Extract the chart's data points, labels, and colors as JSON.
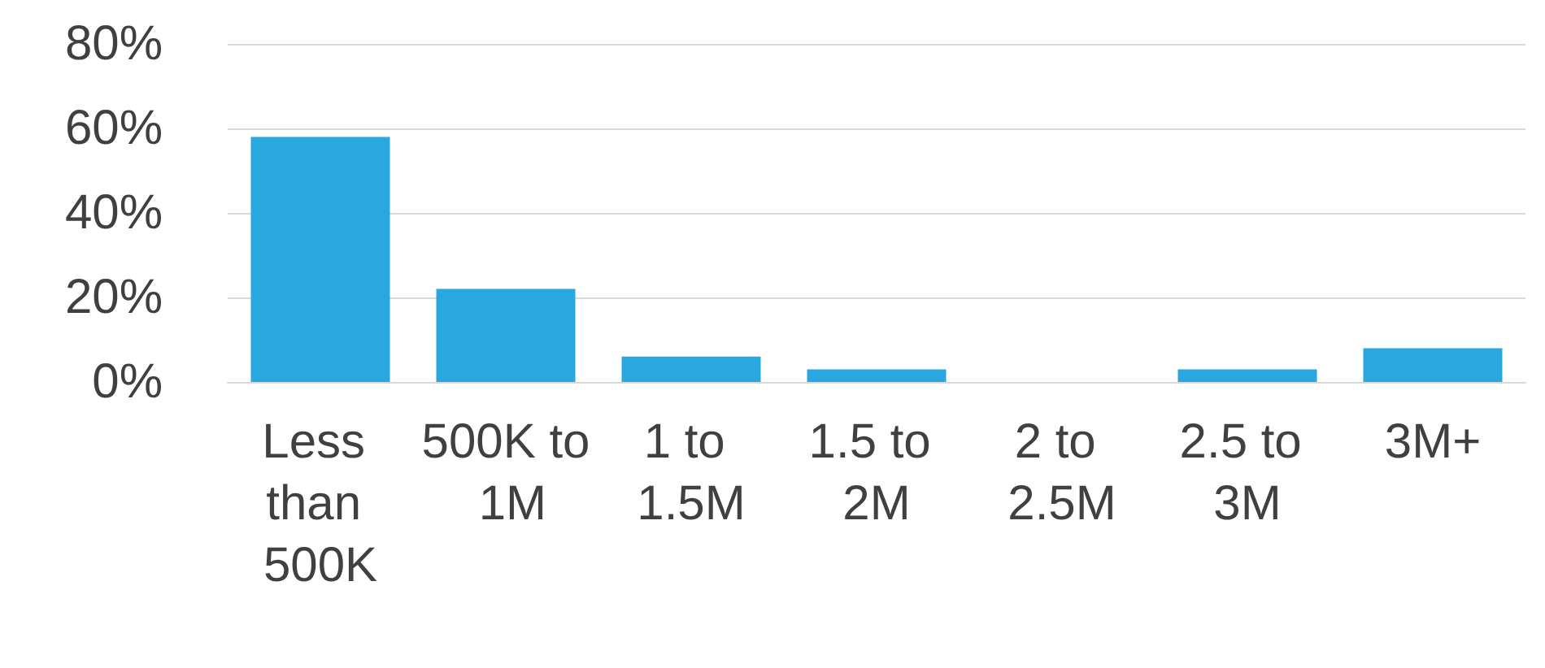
{
  "chart_data": {
    "type": "bar",
    "categories": [
      "Less than 500K",
      "500K to 1M",
      "1 to 1.5M",
      "1.5 to 2M",
      "2 to 2.5M",
      "2.5 to 3M",
      "3M+"
    ],
    "values": [
      58,
      22,
      6,
      3,
      0,
      3,
      8
    ],
    "color": "#29a8e0",
    "ylim": [
      0,
      80
    ],
    "yticks": [
      {
        "value": 0,
        "label": "0%"
      },
      {
        "value": 20,
        "label": "20%"
      },
      {
        "value": 40,
        "label": "40%"
      },
      {
        "value": 60,
        "label": "60%"
      },
      {
        "value": 80,
        "label": "80%"
      }
    ],
    "grid": "y"
  }
}
